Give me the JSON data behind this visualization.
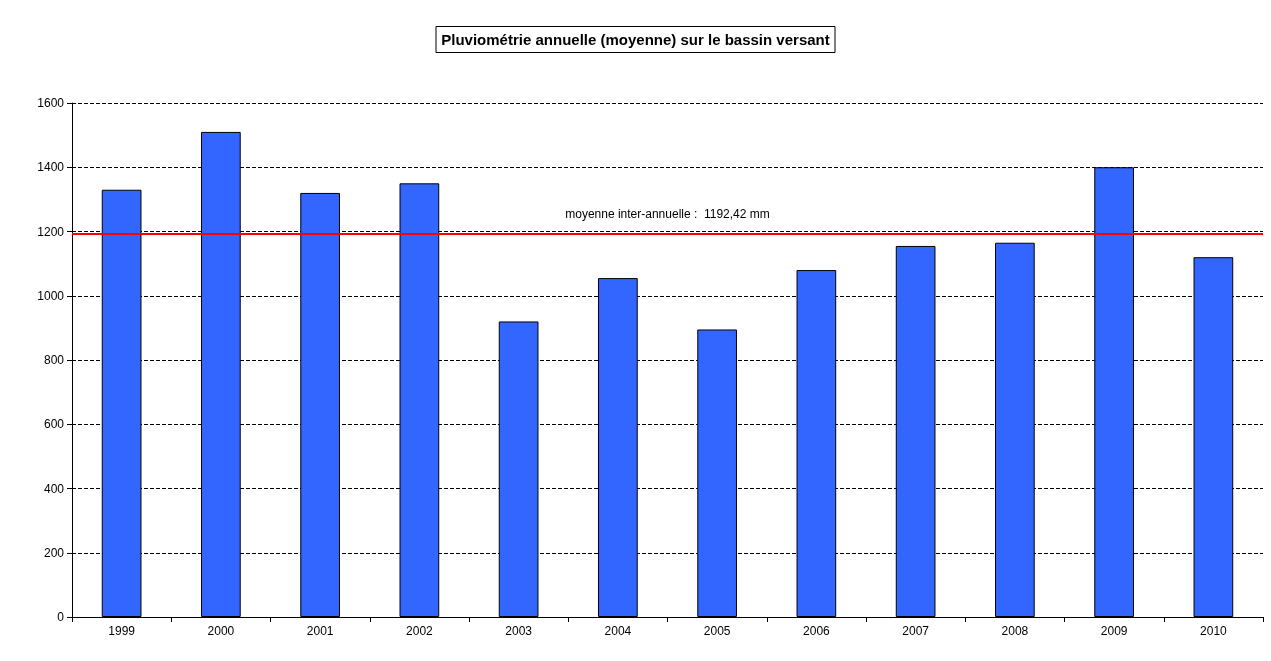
{
  "chart_data": {
    "type": "bar",
    "title": "Pluviométrie annuelle (moyenne) sur le bassin versant",
    "categories": [
      "1999",
      "2000",
      "2001",
      "2002",
      "2003",
      "2004",
      "2005",
      "2006",
      "2007",
      "2008",
      "2009",
      "2010"
    ],
    "values": [
      1330,
      1510,
      1320,
      1350,
      920,
      1055,
      895,
      1080,
      1155,
      1165,
      1400,
      1120
    ],
    "color": "#3366ff",
    "ylim": [
      0,
      1600
    ],
    "yticks": [
      0,
      200,
      400,
      600,
      800,
      1000,
      1200,
      1400,
      1600
    ],
    "grid": "y",
    "ref_lines": [
      {
        "axis": "y",
        "value": 1192.42,
        "label": "moyenne inter-annuelle :  1192,42 mm",
        "color": "#ff0000"
      }
    ]
  }
}
